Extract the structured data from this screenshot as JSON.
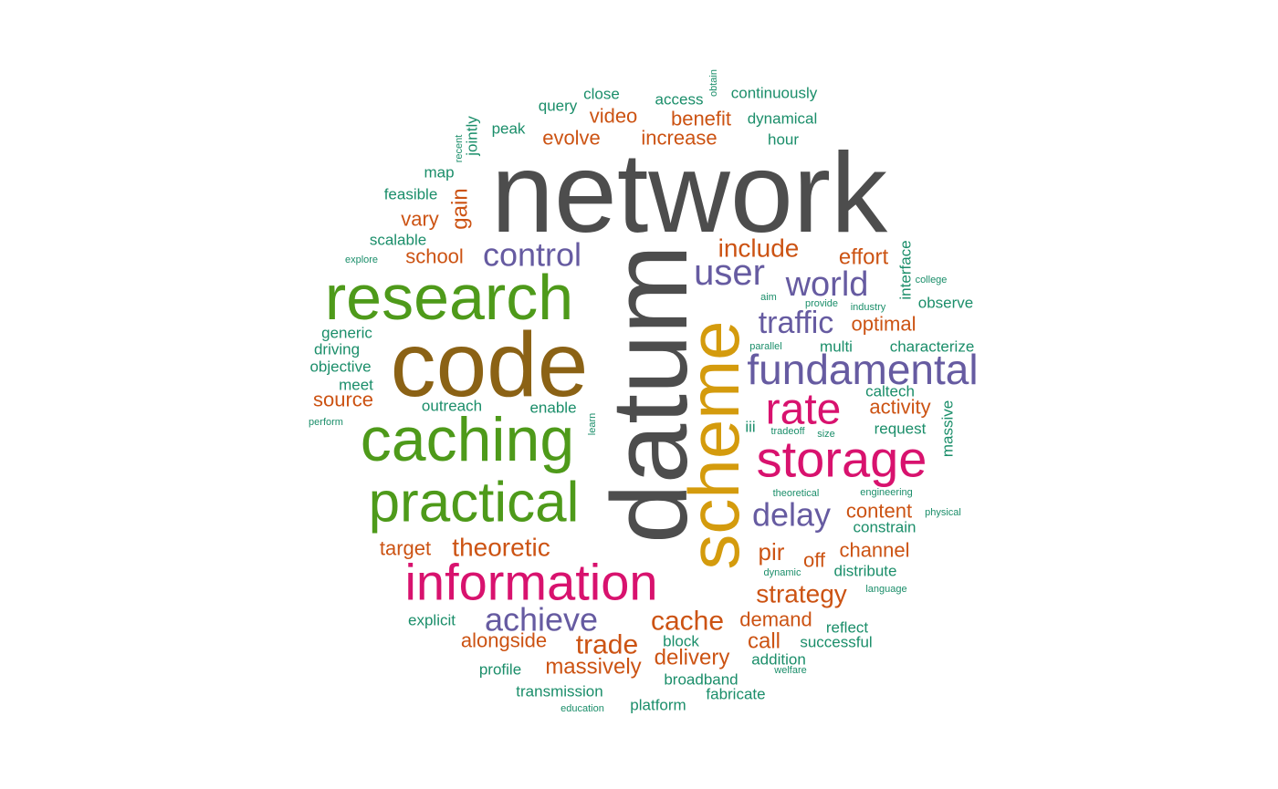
{
  "chart_data": {
    "type": "wordcloud",
    "palette": {
      "gray": "#4d4d4d",
      "brown": "#8b6215",
      "green": "#4e9a1a",
      "gold": "#d49b0d",
      "purple": "#665ba1",
      "magenta": "#d8126e",
      "orange": "#cc5313",
      "teal": "#1b8e6a"
    },
    "words": [
      {
        "text": "network",
        "color": "gray"
      },
      {
        "text": "datum",
        "color": "gray"
      },
      {
        "text": "code",
        "color": "brown"
      },
      {
        "text": "research",
        "color": "green"
      },
      {
        "text": "caching",
        "color": "green"
      },
      {
        "text": "practical",
        "color": "green"
      },
      {
        "text": "scheme",
        "color": "gold"
      },
      {
        "text": "information",
        "color": "magenta"
      },
      {
        "text": "storage",
        "color": "magenta"
      },
      {
        "text": "rate",
        "color": "magenta"
      },
      {
        "text": "fundamental",
        "color": "purple"
      },
      {
        "text": "control",
        "color": "purple"
      },
      {
        "text": "user",
        "color": "purple"
      },
      {
        "text": "world",
        "color": "purple"
      },
      {
        "text": "traffic",
        "color": "purple"
      },
      {
        "text": "delay",
        "color": "purple"
      },
      {
        "text": "achieve",
        "color": "purple"
      },
      {
        "text": "include",
        "color": "orange"
      },
      {
        "text": "effort",
        "color": "orange"
      },
      {
        "text": "optimal",
        "color": "orange"
      },
      {
        "text": "activity",
        "color": "orange"
      },
      {
        "text": "content",
        "color": "orange"
      },
      {
        "text": "channel",
        "color": "orange"
      },
      {
        "text": "pir",
        "color": "orange"
      },
      {
        "text": "off",
        "color": "orange"
      },
      {
        "text": "strategy",
        "color": "orange"
      },
      {
        "text": "cache",
        "color": "orange"
      },
      {
        "text": "demand",
        "color": "orange"
      },
      {
        "text": "call",
        "color": "orange"
      },
      {
        "text": "delivery",
        "color": "orange"
      },
      {
        "text": "trade",
        "color": "orange"
      },
      {
        "text": "massively",
        "color": "orange"
      },
      {
        "text": "alongside",
        "color": "orange"
      },
      {
        "text": "theoretic",
        "color": "orange"
      },
      {
        "text": "target",
        "color": "orange"
      },
      {
        "text": "source",
        "color": "orange"
      },
      {
        "text": "school",
        "color": "orange"
      },
      {
        "text": "vary",
        "color": "orange"
      },
      {
        "text": "gain",
        "color": "orange"
      },
      {
        "text": "evolve",
        "color": "orange"
      },
      {
        "text": "video",
        "color": "orange"
      },
      {
        "text": "increase",
        "color": "orange"
      },
      {
        "text": "benefit",
        "color": "orange"
      },
      {
        "text": "close",
        "color": "teal"
      },
      {
        "text": "query",
        "color": "teal"
      },
      {
        "text": "access",
        "color": "teal"
      },
      {
        "text": "obtain",
        "color": "teal"
      },
      {
        "text": "continuously",
        "color": "teal"
      },
      {
        "text": "dynamical",
        "color": "teal"
      },
      {
        "text": "hour",
        "color": "teal"
      },
      {
        "text": "peak",
        "color": "teal"
      },
      {
        "text": "jointly",
        "color": "teal"
      },
      {
        "text": "recent",
        "color": "teal"
      },
      {
        "text": "map",
        "color": "teal"
      },
      {
        "text": "feasible",
        "color": "teal"
      },
      {
        "text": "scalable",
        "color": "teal"
      },
      {
        "text": "explore",
        "color": "teal"
      },
      {
        "text": "interface",
        "color": "teal"
      },
      {
        "text": "college",
        "color": "teal"
      },
      {
        "text": "observe",
        "color": "teal"
      },
      {
        "text": "aim",
        "color": "teal"
      },
      {
        "text": "provide",
        "color": "teal"
      },
      {
        "text": "industry",
        "color": "teal"
      },
      {
        "text": "multi",
        "color": "teal"
      },
      {
        "text": "characterize",
        "color": "teal"
      },
      {
        "text": "parallel",
        "color": "teal"
      },
      {
        "text": "caltech",
        "color": "teal"
      },
      {
        "text": "massive",
        "color": "teal"
      },
      {
        "text": "request",
        "color": "teal"
      },
      {
        "text": "iii",
        "color": "teal"
      },
      {
        "text": "tradeoff",
        "color": "teal"
      },
      {
        "text": "size",
        "color": "teal"
      },
      {
        "text": "generic",
        "color": "teal"
      },
      {
        "text": "driving",
        "color": "teal"
      },
      {
        "text": "objective",
        "color": "teal"
      },
      {
        "text": "meet",
        "color": "teal"
      },
      {
        "text": "perform",
        "color": "teal"
      },
      {
        "text": "outreach",
        "color": "teal"
      },
      {
        "text": "enable",
        "color": "teal"
      },
      {
        "text": "learn",
        "color": "teal"
      },
      {
        "text": "theoretical",
        "color": "teal"
      },
      {
        "text": "engineering",
        "color": "teal"
      },
      {
        "text": "physical",
        "color": "teal"
      },
      {
        "text": "constrain",
        "color": "teal"
      },
      {
        "text": "dynamic",
        "color": "teal"
      },
      {
        "text": "distribute",
        "color": "teal"
      },
      {
        "text": "language",
        "color": "teal"
      },
      {
        "text": "reflect",
        "color": "teal"
      },
      {
        "text": "successful",
        "color": "teal"
      },
      {
        "text": "addition",
        "color": "teal"
      },
      {
        "text": "welfare",
        "color": "teal"
      },
      {
        "text": "block",
        "color": "teal"
      },
      {
        "text": "broadband",
        "color": "teal"
      },
      {
        "text": "fabricate",
        "color": "teal"
      },
      {
        "text": "explicit",
        "color": "teal"
      },
      {
        "text": "profile",
        "color": "teal"
      },
      {
        "text": "transmission",
        "color": "teal"
      },
      {
        "text": "education",
        "color": "teal"
      },
      {
        "text": "platform",
        "color": "teal"
      }
    ]
  }
}
